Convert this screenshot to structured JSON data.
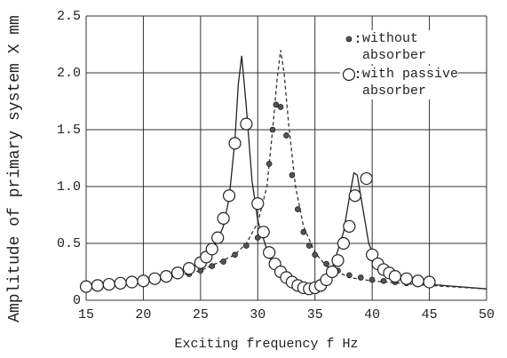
{
  "chart_data": {
    "type": "scatter",
    "xlabel": "Exciting frequency  f Hz",
    "ylabel": "Amplitude of primary system X mm",
    "xlim": [
      15,
      50
    ],
    "xticks": [
      15,
      20,
      25,
      30,
      35,
      40,
      45,
      50
    ],
    "ylim": [
      0,
      2.5
    ],
    "yticks": [
      0,
      0.5,
      {
        "value": 1,
        "label": "1.0"
      },
      1.5,
      {
        "value": 2,
        "label": "2.0"
      },
      2.5
    ],
    "grid": true,
    "series": [
      {
        "name": "without absorber",
        "marker": "dot",
        "color": "#555555",
        "x": [
          15,
          16,
          17,
          18,
          19,
          20,
          21,
          22,
          23,
          24,
          25,
          26,
          27,
          28,
          29,
          30,
          30.5,
          31,
          31.3,
          31.6,
          32,
          32.5,
          33,
          33.5,
          34,
          34.5,
          35,
          36,
          37,
          38,
          39,
          40,
          41,
          42,
          43,
          44
        ],
        "values": [
          0.12,
          0.12,
          0.13,
          0.14,
          0.15,
          0.16,
          0.17,
          0.19,
          0.21,
          0.23,
          0.26,
          0.3,
          0.34,
          0.4,
          0.48,
          0.55,
          0.62,
          1.2,
          1.5,
          1.72,
          1.7,
          1.45,
          1.1,
          0.8,
          0.6,
          0.48,
          0.4,
          0.32,
          0.26,
          0.22,
          0.2,
          0.18,
          0.17,
          0.16,
          0.15,
          0.15
        ]
      },
      {
        "name": "with passive absorber",
        "marker": "circle",
        "color": "#222222",
        "x": [
          15,
          16,
          17,
          18,
          19,
          20,
          21,
          22,
          23,
          24,
          25,
          25.5,
          26,
          26.5,
          27,
          27.5,
          28,
          29,
          30,
          30.5,
          31,
          31.5,
          32,
          32.5,
          33,
          33.5,
          34,
          34.5,
          35,
          35.5,
          36,
          36.5,
          37,
          37.5,
          38,
          38.5,
          39.5,
          40,
          40.5,
          41,
          41.5,
          42,
          43,
          44,
          45
        ],
        "values": [
          0.12,
          0.13,
          0.14,
          0.15,
          0.16,
          0.17,
          0.19,
          0.21,
          0.24,
          0.28,
          0.33,
          0.38,
          0.45,
          0.55,
          0.72,
          0.92,
          1.38,
          1.55,
          0.85,
          0.6,
          0.42,
          0.32,
          0.25,
          0.2,
          0.16,
          0.13,
          0.11,
          0.1,
          0.11,
          0.13,
          0.18,
          0.25,
          0.35,
          0.5,
          0.65,
          0.92,
          1.07,
          0.4,
          0.32,
          0.27,
          0.24,
          0.21,
          0.19,
          0.17,
          0.16
        ]
      }
    ],
    "curves": [
      {
        "style": "solid",
        "color": "#222222",
        "x": [
          15,
          20,
          24,
          26,
          27,
          27.5,
          28,
          28.3,
          28.6,
          29,
          29.5,
          30,
          31,
          32,
          33,
          34,
          34.7,
          35.5,
          36.5,
          37.5,
          38,
          38.4,
          38.7,
          39.2,
          39.7,
          40.5,
          42,
          45,
          50
        ],
        "values": [
          0.11,
          0.15,
          0.27,
          0.42,
          0.65,
          0.9,
          1.4,
          1.9,
          2.15,
          1.7,
          1.05,
          0.7,
          0.38,
          0.22,
          0.13,
          0.08,
          0.07,
          0.12,
          0.28,
          0.6,
          0.9,
          1.12,
          1.1,
          0.8,
          0.5,
          0.3,
          0.2,
          0.14,
          0.1
        ]
      },
      {
        "style": "dashed",
        "color": "#333333",
        "x": [
          15,
          20,
          25,
          28,
          29,
          30,
          30.8,
          31.3,
          31.7,
          32,
          32.3,
          32.7,
          33.3,
          34,
          35,
          36,
          38,
          40,
          45,
          50
        ],
        "values": [
          0.11,
          0.15,
          0.26,
          0.4,
          0.5,
          0.68,
          1.0,
          1.5,
          1.95,
          2.2,
          2.0,
          1.55,
          1.0,
          0.65,
          0.42,
          0.3,
          0.2,
          0.17,
          0.13,
          0.1
        ]
      }
    ]
  }
}
